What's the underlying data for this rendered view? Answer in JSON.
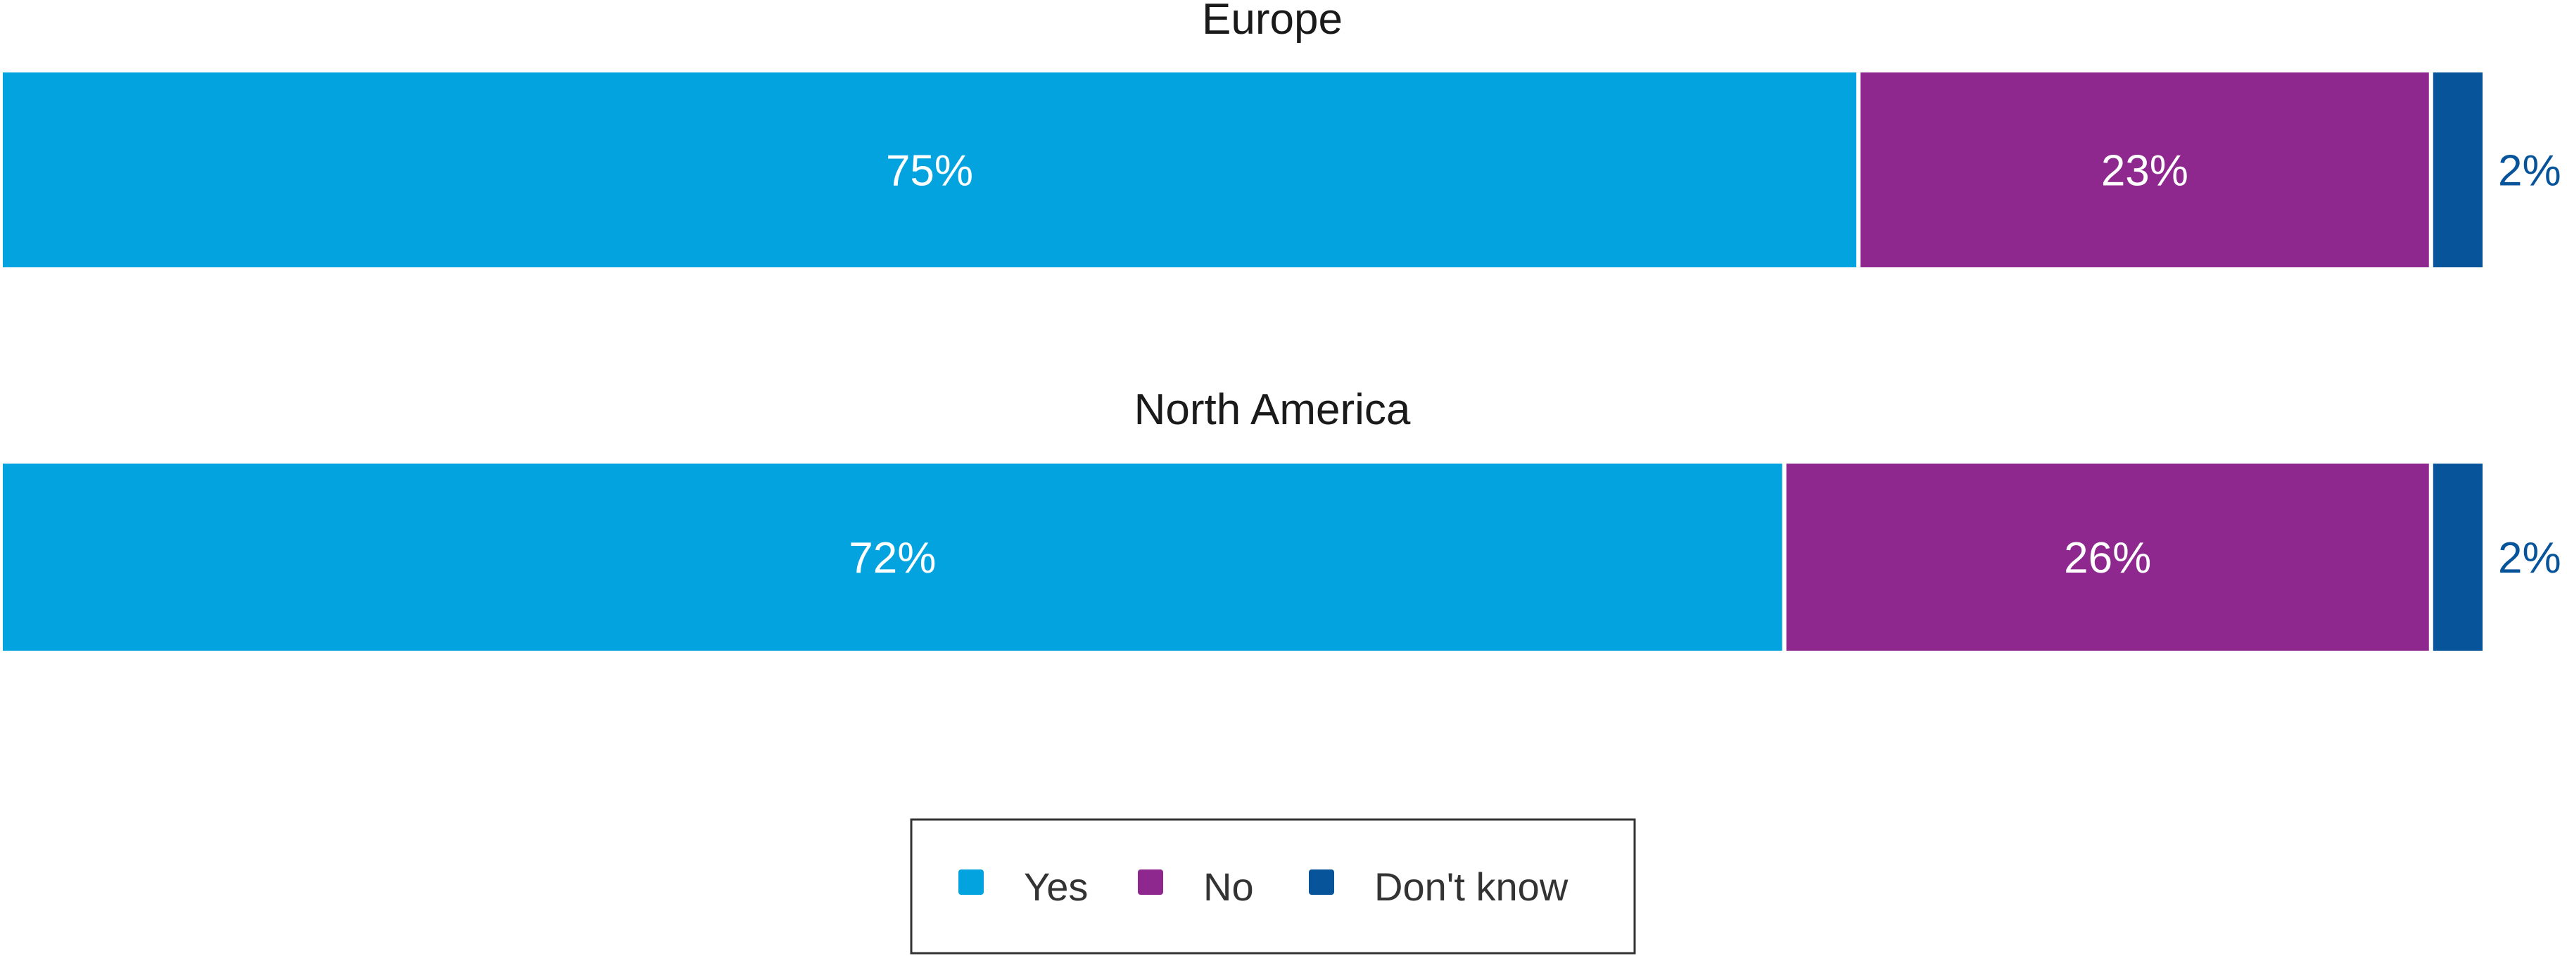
{
  "chart_data": {
    "type": "bar",
    "stacked": true,
    "orientation": "horizontal",
    "unit": "%",
    "categories": [
      "Europe",
      "North America"
    ],
    "series": [
      {
        "name": "Yes",
        "values": [
          75,
          72
        ],
        "labels": [
          "75%",
          "72%"
        ]
      },
      {
        "name": "No",
        "values": [
          23,
          26
        ],
        "labels": [
          "23%",
          "26%"
        ]
      },
      {
        "name": "Don't know",
        "values": [
          2,
          2
        ],
        "labels": [
          "2%",
          "2%"
        ]
      }
    ],
    "xlim": [
      0,
      100
    ],
    "grid": false,
    "legend_position": "bottom-center",
    "colors": [
      "#03A3E0",
      "#8E288F",
      "#07549B"
    ]
  }
}
